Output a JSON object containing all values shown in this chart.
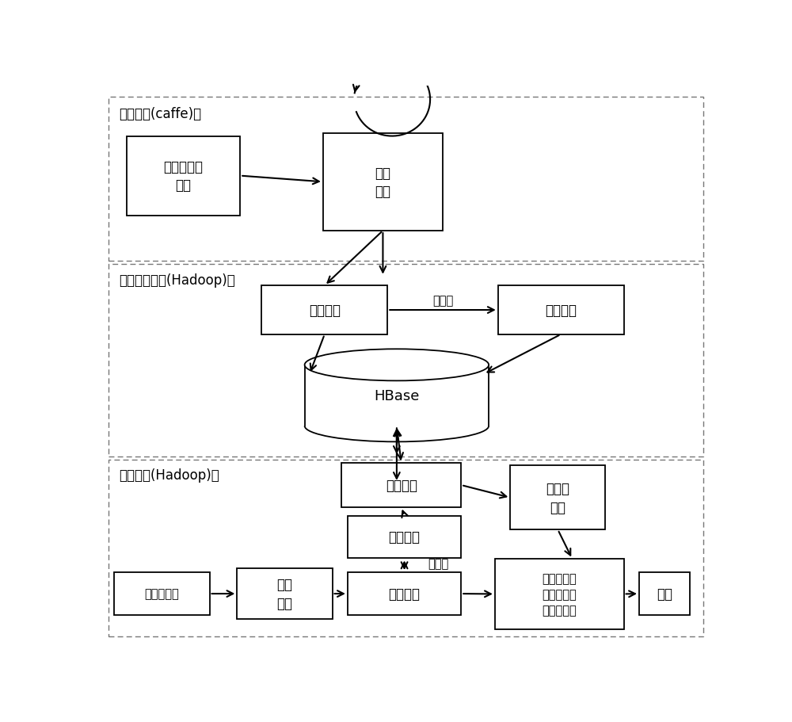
{
  "bg_color": "#ffffff",
  "section1_label": "训练阶段(caffe)：",
  "section2_label": "特征存储阶段(Hadoop)：",
  "section3_label": "检索阶段(Hadoop)：",
  "box_dataset": "带标签的数\n据集",
  "box_netmodel1": "网络\n模型",
  "box_imgshow1": "图像表示",
  "box_hashcode1": "哈希编码",
  "box_hbase": "HBase",
  "box_hashmatch": "哈希匹配",
  "box_hashcode2": "哈希编码",
  "box_query": "待检索图像",
  "box_netmodel2": "网络\n模型",
  "box_imgshow2": "图像表示",
  "box_candidate": "候选图\n像集",
  "box_compare": "待检索图像\n与候选图像\n相似性比较",
  "box_output": "输出",
  "label_binarize1": "二值化",
  "label_binarize2": "二值化"
}
